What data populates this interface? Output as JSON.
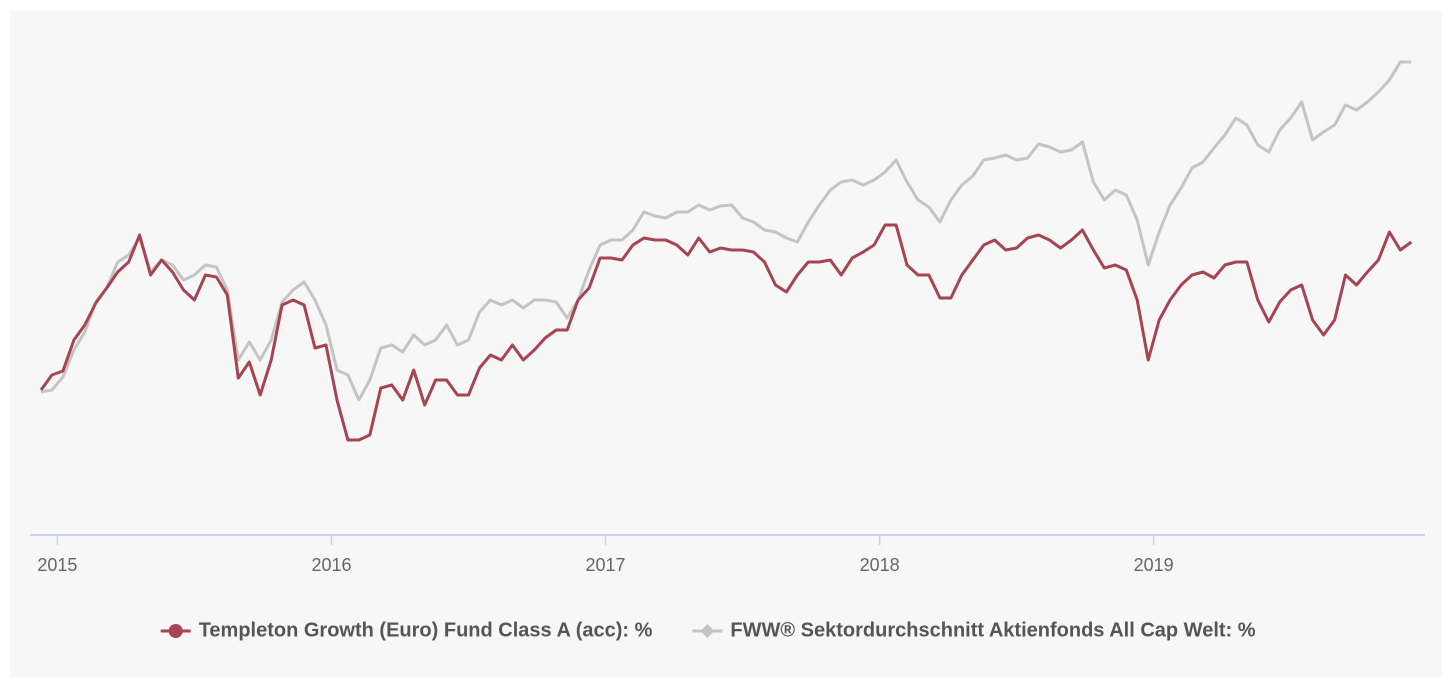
{
  "chart_data": {
    "type": "line",
    "x": [
      2014.94,
      2014.98,
      2015.02,
      2015.06,
      2015.1,
      2015.14,
      2015.18,
      2015.22,
      2015.26,
      2015.3,
      2015.34,
      2015.38,
      2015.42,
      2015.46,
      2015.5,
      2015.54,
      2015.58,
      2015.62,
      2015.66,
      2015.7,
      2015.74,
      2015.78,
      2015.82,
      2015.86,
      2015.9,
      2015.94,
      2015.98,
      2016.02,
      2016.06,
      2016.1,
      2016.14,
      2016.18,
      2016.22,
      2016.26,
      2016.3,
      2016.34,
      2016.38,
      2016.42,
      2016.46,
      2016.5,
      2016.54,
      2016.58,
      2016.62,
      2016.66,
      2016.7,
      2016.74,
      2016.78,
      2016.82,
      2016.86,
      2016.9,
      2016.94,
      2016.98,
      2017.02,
      2017.06,
      2017.1,
      2017.14,
      2017.18,
      2017.22,
      2017.26,
      2017.3,
      2017.34,
      2017.38,
      2017.42,
      2017.46,
      2017.5,
      2017.54,
      2017.58,
      2017.62,
      2017.66,
      2017.7,
      2017.74,
      2017.78,
      2017.82,
      2017.86,
      2017.9,
      2017.94,
      2017.98,
      2018.02,
      2018.06,
      2018.1,
      2018.14,
      2018.18,
      2018.22,
      2018.26,
      2018.3,
      2018.34,
      2018.38,
      2018.42,
      2018.46,
      2018.5,
      2018.54,
      2018.58,
      2018.62,
      2018.66,
      2018.7,
      2018.74,
      2018.78,
      2018.82,
      2018.86,
      2018.9,
      2018.94,
      2018.98,
      2019.02,
      2019.06,
      2019.1,
      2019.14,
      2019.18,
      2019.22,
      2019.26,
      2019.3,
      2019.34,
      2019.38,
      2019.42,
      2019.46,
      2019.5,
      2019.54,
      2019.58,
      2019.62,
      2019.66,
      2019.7,
      2019.74,
      2019.78,
      2019.82,
      2019.86,
      2019.9,
      2019.94
    ],
    "series": [
      {
        "name": "Templeton Growth (Euro) Fund Class A (acc): %",
        "color": "#a64452",
        "marker": "circle",
        "values": [
          145,
          160,
          164,
          195,
          210,
          232,
          247,
          263,
          273,
          300,
          260,
          275,
          263,
          245,
          235,
          260,
          258,
          240,
          157,
          173,
          140,
          175,
          230,
          235,
          230,
          187,
          190,
          135,
          95,
          95,
          100,
          147,
          150,
          135,
          165,
          130,
          155,
          155,
          140,
          140,
          167,
          180,
          175,
          190,
          175,
          185,
          197,
          205,
          205,
          235,
          247,
          277,
          277,
          275,
          290,
          297,
          295,
          295,
          290,
          280,
          297,
          283,
          287,
          285,
          285,
          283,
          273,
          250,
          243,
          260,
          273,
          273,
          275,
          260,
          277,
          283,
          290,
          310,
          310,
          270,
          260,
          260,
          237,
          237,
          260,
          275,
          290,
          295,
          285,
          287,
          297,
          300,
          295,
          287,
          295,
          305,
          285,
          267,
          270,
          265,
          235,
          175,
          215,
          235,
          250,
          260,
          263,
          257,
          270,
          273,
          273,
          235,
          213,
          233,
          245,
          250,
          215,
          200,
          215,
          260,
          250,
          263,
          275,
          303,
          285,
          293
        ]
      },
      {
        "name": "FWW® Sektordurchschnitt Aktienfonds All Cap Welt: %",
        "color": "#c4c4c4",
        "marker": "diamond",
        "values": [
          143,
          145,
          158,
          185,
          203,
          233,
          247,
          273,
          280,
          297,
          263,
          275,
          270,
          255,
          260,
          270,
          268,
          245,
          175,
          193,
          175,
          195,
          233,
          245,
          253,
          235,
          210,
          165,
          160,
          135,
          155,
          187,
          190,
          183,
          200,
          190,
          195,
          210,
          190,
          195,
          223,
          235,
          230,
          235,
          227,
          235,
          235,
          233,
          217,
          235,
          265,
          290,
          295,
          295,
          305,
          323,
          319,
          317,
          323,
          323,
          330,
          325,
          329,
          330,
          317,
          313,
          305,
          303,
          297,
          293,
          313,
          330,
          345,
          353,
          355,
          350,
          355,
          363,
          375,
          353,
          335,
          328,
          313,
          335,
          350,
          359,
          375,
          377,
          380,
          375,
          377,
          391,
          388,
          383,
          385,
          393,
          353,
          335,
          345,
          340,
          315,
          270,
          303,
          330,
          347,
          367,
          373,
          387,
          400,
          417,
          410,
          390,
          383,
          405,
          417,
          433,
          395,
          403,
          410,
          430,
          425,
          433,
          443,
          455,
          473,
          473
        ]
      }
    ],
    "xlim": [
      2014.9,
      2019.99
    ],
    "xticks": [
      2015,
      2016,
      2017,
      2018,
      2019
    ],
    "ylim": [
      0,
      500
    ],
    "grid": false,
    "legend": "bottom"
  }
}
